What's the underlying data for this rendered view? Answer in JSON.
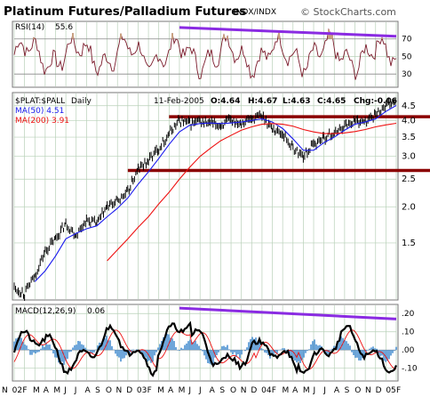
{
  "header": {
    "title": "Platinum Futures/Palladium Futures",
    "exchange": "INDX/INDX",
    "watermark": "© StockCharts.com"
  },
  "colors": {
    "grid": "#b8d0b8",
    "price": "#000000",
    "ma50": "#1a1aee",
    "ma200": "#ee1111",
    "rsi": "#7a1a2a",
    "rsi_fill": "#c8a080",
    "macd": "#000000",
    "macd_signal": "#ee1111",
    "histogram": "#4a90d0",
    "support_resistance": "#8b0000",
    "trend": "#8a2be2"
  },
  "chart_data": [
    {
      "panel": "rsi",
      "type": "line",
      "label_text": "RSI(14)",
      "value_text": "55.6",
      "y_ticks": [
        {
          "label": "70",
          "value": 70
        },
        {
          "label": "50",
          "value": 50
        },
        {
          "label": "30",
          "value": 30
        }
      ],
      "ylim": [
        15,
        90
      ],
      "overbought": 70,
      "oversold": 30,
      "last_value": 55.6,
      "trendline": {
        "from": [
          "May 2003",
          83
        ],
        "to": [
          "Feb 2005",
          73
        ]
      }
    },
    {
      "panel": "price",
      "type": "line",
      "symbol": "$PLAT:$PALL",
      "period": "Daily",
      "date": "11-Feb-2005",
      "ohlc_text": {
        "open": "O:4.64",
        "high": "H:4.67",
        "low": "L:4.63",
        "close": "C:4.65",
        "change": "Chg:-0.06"
      },
      "ma50_text": "MA(50) 4.51",
      "ma200_text": "MA(200) 3.91",
      "log_scale": true,
      "y_ticks": [
        {
          "label": "4.5",
          "value": 4.5
        },
        {
          "label": "4.0",
          "value": 4.0
        },
        {
          "label": "3.5",
          "value": 3.5
        },
        {
          "label": "3.0",
          "value": 3.0
        },
        {
          "label": "2.5",
          "value": 2.5
        },
        {
          "label": "2.0",
          "value": 2.0
        },
        {
          "label": "1.5",
          "value": 1.5
        }
      ],
      "ylim": [
        0.95,
        5.0
      ],
      "horizontal_lines": [
        4.12,
        2.68
      ],
      "series": [
        {
          "points": [
            [
              "Jan 2002",
              1.05
            ],
            [
              "Feb 2002",
              1.0
            ],
            [
              "Mar 2002",
              1.15
            ],
            [
              "Apr 2002",
              1.4
            ],
            [
              "May 2002",
              1.55
            ],
            [
              "Jun 2002",
              1.75
            ],
            [
              "Jul 2002",
              1.6
            ],
            [
              "Aug 2002",
              1.8
            ],
            [
              "Sep 2002",
              1.75
            ],
            [
              "Oct 2002",
              2.0
            ],
            [
              "Nov 2002",
              2.1
            ],
            [
              "Dec 2002",
              2.25
            ],
            [
              "Jan 2003",
              2.7
            ],
            [
              "Feb 2003",
              2.9
            ],
            [
              "Mar 2003",
              3.2
            ],
            [
              "Apr 2003",
              3.6
            ],
            [
              "May 2003",
              4.0
            ],
            [
              "Jun 2003",
              3.9
            ],
            [
              "Jul 2003",
              3.95
            ],
            [
              "Aug 2003",
              3.9
            ],
            [
              "Sep 2003",
              3.85
            ],
            [
              "Oct 2003",
              4.0
            ],
            [
              "Nov 2003",
              3.95
            ],
            [
              "Dec 2003",
              4.05
            ],
            [
              "Jan 2004",
              4.15
            ],
            [
              "Feb 2004",
              3.75
            ],
            [
              "Mar 2004",
              3.6
            ],
            [
              "Apr 2004",
              3.2
            ],
            [
              "May 2004",
              3.0
            ],
            [
              "Jun 2004",
              3.3
            ],
            [
              "Jul 2004",
              3.5
            ],
            [
              "Aug 2004",
              3.6
            ],
            [
              "Sep 2004",
              3.85
            ],
            [
              "Oct 2004",
              4.0
            ],
            [
              "Nov 2004",
              3.95
            ],
            [
              "Dec 2004",
              4.2
            ],
            [
              "Jan 2005",
              4.5
            ],
            [
              "Feb 2005",
              4.65
            ]
          ]
        },
        {
          "name": "MA(50)",
          "points": [
            [
              "Mar 2002",
              1.1
            ],
            [
              "Apr 2002",
              1.2
            ],
            [
              "May 2002",
              1.35
            ],
            [
              "Jun 2002",
              1.55
            ],
            [
              "Jul 2002",
              1.62
            ],
            [
              "Aug 2002",
              1.68
            ],
            [
              "Sep 2002",
              1.72
            ],
            [
              "Oct 2002",
              1.85
            ],
            [
              "Nov 2002",
              1.98
            ],
            [
              "Dec 2002",
              2.15
            ],
            [
              "Jan 2003",
              2.4
            ],
            [
              "Feb 2003",
              2.65
            ],
            [
              "Mar 2003",
              2.95
            ],
            [
              "Apr 2003",
              3.3
            ],
            [
              "May 2003",
              3.65
            ],
            [
              "Jun 2003",
              3.85
            ],
            [
              "Jul 2003",
              3.9
            ],
            [
              "Aug 2003",
              3.92
            ],
            [
              "Sep 2003",
              3.9
            ],
            [
              "Oct 2003",
              3.92
            ],
            [
              "Nov 2003",
              3.95
            ],
            [
              "Dec 2003",
              4.0
            ],
            [
              "Jan 2004",
              4.05
            ],
            [
              "Feb 2004",
              3.95
            ],
            [
              "Mar 2004",
              3.75
            ],
            [
              "Apr 2004",
              3.45
            ],
            [
              "May 2004",
              3.15
            ],
            [
              "Jun 2004",
              3.15
            ],
            [
              "Jul 2004",
              3.35
            ],
            [
              "Aug 2004",
              3.5
            ],
            [
              "Sep 2004",
              3.7
            ],
            [
              "Oct 2004",
              3.88
            ],
            [
              "Nov 2004",
              3.95
            ],
            [
              "Dec 2004",
              4.05
            ],
            [
              "Jan 2005",
              4.3
            ],
            [
              "Feb 2005",
              4.51
            ]
          ]
        },
        {
          "name": "MA(200)",
          "points": [
            [
              "Oct 2002",
              1.3
            ],
            [
              "Nov 2002",
              1.42
            ],
            [
              "Dec 2002",
              1.55
            ],
            [
              "Jan 2003",
              1.7
            ],
            [
              "Feb 2003",
              1.85
            ],
            [
              "Mar 2003",
              2.05
            ],
            [
              "Apr 2003",
              2.25
            ],
            [
              "May 2003",
              2.5
            ],
            [
              "Jun 2003",
              2.75
            ],
            [
              "Jul 2003",
              3.0
            ],
            [
              "Aug 2003",
              3.2
            ],
            [
              "Sep 2003",
              3.4
            ],
            [
              "Oct 2003",
              3.55
            ],
            [
              "Nov 2003",
              3.7
            ],
            [
              "Dec 2003",
              3.8
            ],
            [
              "Jan 2004",
              3.88
            ],
            [
              "Feb 2004",
              3.9
            ],
            [
              "Mar 2004",
              3.88
            ],
            [
              "Apr 2004",
              3.82
            ],
            [
              "May 2004",
              3.72
            ],
            [
              "Jun 2004",
              3.65
            ],
            [
              "Jul 2004",
              3.6
            ],
            [
              "Aug 2004",
              3.6
            ],
            [
              "Sep 2004",
              3.62
            ],
            [
              "Oct 2004",
              3.66
            ],
            [
              "Nov 2004",
              3.72
            ],
            [
              "Dec 2004",
              3.8
            ],
            [
              "Jan 2005",
              3.86
            ],
            [
              "Feb 2005",
              3.91
            ]
          ]
        }
      ]
    },
    {
      "panel": "macd",
      "type": "line",
      "label_text": "MACD(12,26,9)",
      "value_text": "0.06",
      "y_ticks": [
        {
          "label": ".20",
          "value": 0.2
        },
        {
          "label": ".10",
          "value": 0.1
        },
        {
          "label": ".00",
          "value": 0.0
        },
        {
          "label": "-.10",
          "value": -0.1
        }
      ],
      "ylim": [
        -0.17,
        0.25
      ],
      "last_value": 0.06,
      "trendline": {
        "from": [
          "May 2003",
          0.23
        ],
        "to": [
          "Feb 2005",
          0.17
        ]
      }
    }
  ],
  "x_axis": {
    "labels": [
      "N",
      "02",
      "F",
      "M",
      "A",
      "M",
      "J",
      "J",
      "A",
      "S",
      "O",
      "N",
      "D",
      "03",
      "F",
      "M",
      "A",
      "M",
      "J",
      "J",
      "A",
      "S",
      "O",
      "N",
      "D",
      "04",
      "F",
      "M",
      "A",
      "M",
      "J",
      "J",
      "A",
      "S",
      "O",
      "N",
      "D",
      "05",
      "F"
    ]
  }
}
